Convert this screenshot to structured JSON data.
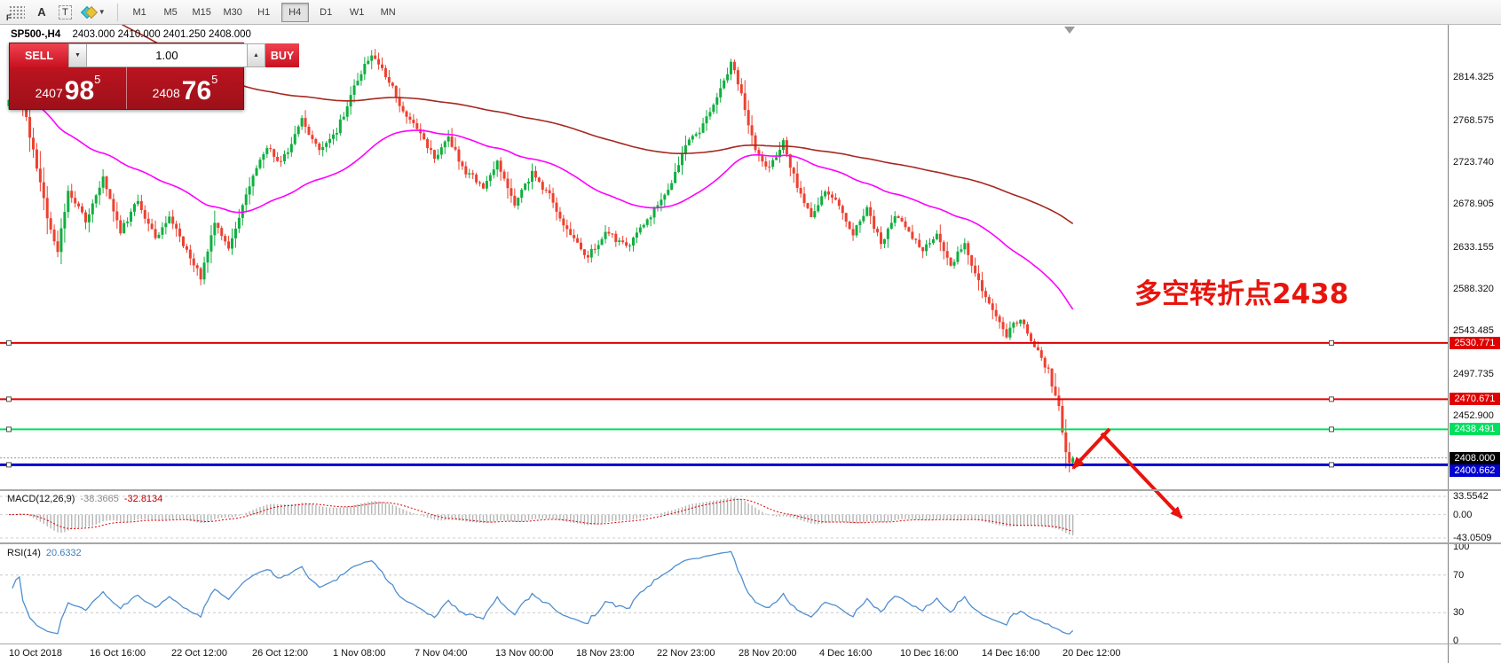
{
  "toolbar": {
    "icons": {
      "grid_glyph": "F",
      "text_label": "A",
      "text_box": "T",
      "dropdown_glyph": "▼"
    },
    "timeframes": [
      {
        "label": "M1",
        "active": false
      },
      {
        "label": "M5",
        "active": false
      },
      {
        "label": "M15",
        "active": false
      },
      {
        "label": "M30",
        "active": false
      },
      {
        "label": "H1",
        "active": false
      },
      {
        "label": "H4",
        "active": true
      },
      {
        "label": "D1",
        "active": false
      },
      {
        "label": "W1",
        "active": false
      },
      {
        "label": "MN",
        "active": false
      }
    ]
  },
  "chart_header": {
    "symbol": "SP500-,H4",
    "ohlc": "2403.000 2410.000 2401.250 2408.000"
  },
  "trade_panel": {
    "sell": "SELL",
    "buy": "BUY",
    "volume": "1.00",
    "spinner_down": "▼",
    "spinner_up": "▲",
    "bid": {
      "main": "2407",
      "pips": "98",
      "sub": "5"
    },
    "ask": {
      "main": "2408",
      "pips": "76",
      "sub": "5"
    }
  },
  "annotation": {
    "text": "多空转折点2438",
    "color": "#e8150d",
    "arrows": [
      {
        "from": [
          1250,
          484
        ],
        "to": [
          1209,
          528
        ]
      },
      {
        "from": [
          1241,
          489
        ],
        "to": [
          1331,
          584
        ]
      }
    ]
  },
  "chart_data": {
    "type": "candlestick",
    "symbol": "SP500-",
    "timeframe": "H4",
    "title_ohlc": {
      "open": 2403.0,
      "high": 2410.0,
      "low": 2401.25,
      "close": 2408.0
    },
    "y_axis": {
      "range_top": 2870.4,
      "range_bottom": 2374.5,
      "ticks": [
        "2814.325",
        "2768.575",
        "2723.740",
        "2678.905",
        "2633.155",
        "2588.320",
        "2543.485",
        "2497.735",
        "2452.900"
      ]
    },
    "x_axis": {
      "labels": [
        "10 Oct 2018",
        "16 Oct 16:00",
        "22 Oct 12:00",
        "26 Oct 12:00",
        "1 Nov 08:00",
        "7 Nov 04:00",
        "13 Nov 00:00",
        "18 Nov 23:00",
        "22 Nov 23:00",
        "28 Nov 20:00",
        "4 Dec 16:00",
        "10 Dec 16:00",
        "14 Dec 16:00",
        "20 Dec 12:00"
      ]
    },
    "horizontal_lines": [
      {
        "price": 2530.771,
        "label": "2530.771",
        "color": "#e00000",
        "width": 2
      },
      {
        "price": 2470.671,
        "label": "2470.671",
        "color": "#e00000",
        "width": 2
      },
      {
        "price": 2438.491,
        "label": "2438.491",
        "color": "#00e05f",
        "width": 2
      },
      {
        "price": 2400.662,
        "label": "2400.662",
        "color": "#0202d0",
        "width": 3
      }
    ],
    "current_price": {
      "price": 2408.0,
      "label": "2408.000",
      "tag_bg": "#000000"
    },
    "candles": {
      "count": 306,
      "up_color": "#0faf3f",
      "down_color": "#ee4030",
      "path": [
        [
          0,
          2785
        ],
        [
          4,
          2802
        ],
        [
          8,
          2735
        ],
        [
          12,
          2665
        ],
        [
          15,
          2630
        ],
        [
          18,
          2690
        ],
        [
          23,
          2662
        ],
        [
          28,
          2706
        ],
        [
          33,
          2650
        ],
        [
          38,
          2682
        ],
        [
          43,
          2642
        ],
        [
          47,
          2668
        ],
        [
          52,
          2628
        ],
        [
          56,
          2602
        ],
        [
          60,
          2656
        ],
        [
          64,
          2634
        ],
        [
          70,
          2698
        ],
        [
          75,
          2742
        ],
        [
          79,
          2722
        ],
        [
          85,
          2768
        ],
        [
          90,
          2735
        ],
        [
          95,
          2757
        ],
        [
          101,
          2812
        ],
        [
          105,
          2840
        ],
        [
          109,
          2818
        ],
        [
          113,
          2786
        ],
        [
          118,
          2760
        ],
        [
          123,
          2728
        ],
        [
          127,
          2752
        ],
        [
          131,
          2716
        ],
        [
          137,
          2698
        ],
        [
          141,
          2724
        ],
        [
          146,
          2678
        ],
        [
          151,
          2712
        ],
        [
          156,
          2688
        ],
        [
          161,
          2652
        ],
        [
          167,
          2622
        ],
        [
          172,
          2650
        ],
        [
          178,
          2632
        ],
        [
          185,
          2668
        ],
        [
          191,
          2702
        ],
        [
          196,
          2748
        ],
        [
          200,
          2762
        ],
        [
          204,
          2794
        ],
        [
          208,
          2830
        ],
        [
          211,
          2796
        ],
        [
          215,
          2736
        ],
        [
          219,
          2718
        ],
        [
          223,
          2744
        ],
        [
          227,
          2698
        ],
        [
          231,
          2668
        ],
        [
          235,
          2694
        ],
        [
          239,
          2676
        ],
        [
          243,
          2648
        ],
        [
          247,
          2674
        ],
        [
          251,
          2638
        ],
        [
          255,
          2666
        ],
        [
          259,
          2650
        ],
        [
          263,
          2630
        ],
        [
          267,
          2648
        ],
        [
          271,
          2616
        ],
        [
          275,
          2634
        ],
        [
          279,
          2596
        ],
        [
          283,
          2564
        ],
        [
          287,
          2540
        ],
        [
          291,
          2558
        ],
        [
          295,
          2526
        ],
        [
          299,
          2500
        ],
        [
          302,
          2462
        ],
        [
          304,
          2414
        ],
        [
          305,
          2404
        ]
      ]
    },
    "moving_averages": [
      {
        "name": "fast",
        "type": "ema",
        "period": 60,
        "color": "#ff00ff"
      },
      {
        "name": "slow",
        "type": "ema",
        "period": 200,
        "seed": 2940,
        "color": "#a52820"
      }
    ],
    "macd": {
      "name": "MACD(12,26,9)",
      "main": "-38.3665",
      "signal": "-32.8134",
      "main_num": -38.3665,
      "signal_num": -32.8134,
      "hist_color": "#b5b5b5",
      "signal_color": "#dd0000",
      "scale": [
        {
          "label": "33.5542",
          "value": 33.5542
        },
        {
          "label": "0.00",
          "value": 0
        },
        {
          "label": "-43.0509",
          "value": -43.0509
        }
      ]
    },
    "rsi": {
      "name": "RSI(14)",
      "value": "20.6332",
      "value_num": 20.6332,
      "color": "#4f8fd0",
      "levels": [
        {
          "label": "100",
          "value": 100
        },
        {
          "label": "70",
          "value": 70
        },
        {
          "label": "30",
          "value": 30
        },
        {
          "label": "0",
          "value": 0
        }
      ]
    }
  }
}
